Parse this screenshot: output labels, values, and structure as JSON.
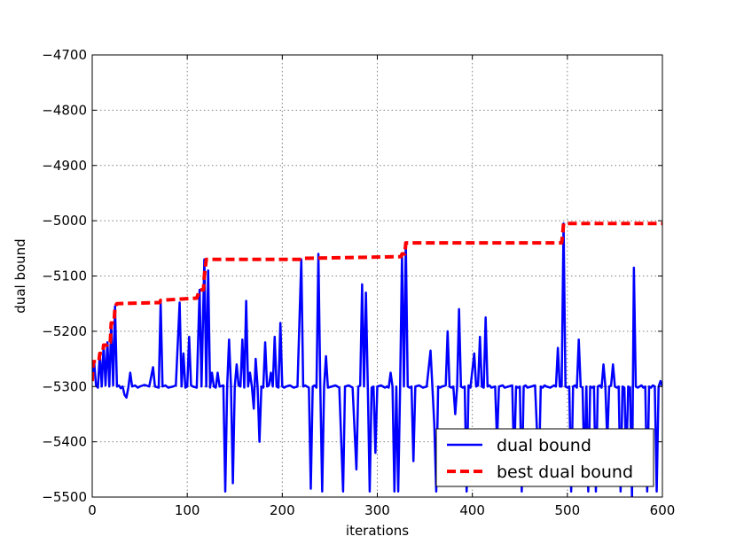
{
  "chart_data": {
    "type": "line",
    "title": "",
    "xlabel": "iterations",
    "ylabel": "dual bound",
    "xlim": [
      0,
      600
    ],
    "ylim": [
      -5500,
      -4700
    ],
    "xticks": [
      0,
      100,
      200,
      300,
      400,
      500,
      600
    ],
    "yticks": [
      -4700,
      -4800,
      -4900,
      -5000,
      -5100,
      -5200,
      -5300,
      -5400,
      -5500
    ],
    "xtick_labels": [
      "0",
      "100",
      "200",
      "300",
      "400",
      "500",
      "600"
    ],
    "ytick_labels": [
      "−4700",
      "−4800",
      "−4900",
      "−5000",
      "−5100",
      "−5200",
      "−5300",
      "−5400",
      "−5500"
    ],
    "grid": true,
    "legend_position": "lower-right",
    "series": [
      {
        "name": "dual bound",
        "color": "#0000ff",
        "style": "solid",
        "points": [
          [
            0,
            -5290
          ],
          [
            2,
            -5255
          ],
          [
            4,
            -5298
          ],
          [
            6,
            -5302
          ],
          [
            8,
            -5240
          ],
          [
            10,
            -5300
          ],
          [
            12,
            -5225
          ],
          [
            14,
            -5298
          ],
          [
            16,
            -5220
          ],
          [
            18,
            -5300
          ],
          [
            20,
            -5185
          ],
          [
            22,
            -5298
          ],
          [
            24,
            -5155
          ],
          [
            26,
            -5300
          ],
          [
            28,
            -5298
          ],
          [
            30,
            -5303
          ],
          [
            32,
            -5300
          ],
          [
            34,
            -5315
          ],
          [
            36,
            -5320
          ],
          [
            38,
            -5302
          ],
          [
            40,
            -5275
          ],
          [
            42,
            -5300
          ],
          [
            45,
            -5298
          ],
          [
            48,
            -5302
          ],
          [
            50,
            -5300
          ],
          [
            55,
            -5297
          ],
          [
            60,
            -5300
          ],
          [
            64,
            -5265
          ],
          [
            66,
            -5300
          ],
          [
            70,
            -5302
          ],
          [
            72,
            -5148
          ],
          [
            74,
            -5300
          ],
          [
            77,
            -5298
          ],
          [
            80,
            -5302
          ],
          [
            85,
            -5300
          ],
          [
            88,
            -5298
          ],
          [
            92,
            -5148
          ],
          [
            94,
            -5300
          ],
          [
            96,
            -5240
          ],
          [
            98,
            -5302
          ],
          [
            100,
            -5300
          ],
          [
            102,
            -5210
          ],
          [
            104,
            -5298
          ],
          [
            106,
            -5300
          ],
          [
            110,
            -5302
          ],
          [
            113,
            -5125
          ],
          [
            115,
            -5300
          ],
          [
            118,
            -5070
          ],
          [
            120,
            -5300
          ],
          [
            122,
            -5090
          ],
          [
            124,
            -5302
          ],
          [
            126,
            -5275
          ],
          [
            128,
            -5300
          ],
          [
            130,
            -5302
          ],
          [
            132,
            -5275
          ],
          [
            134,
            -5300
          ],
          [
            138,
            -5298
          ],
          [
            140,
            -5490
          ],
          [
            142,
            -5300
          ],
          [
            144,
            -5215
          ],
          [
            146,
            -5298
          ],
          [
            148,
            -5475
          ],
          [
            150,
            -5300
          ],
          [
            152,
            -5260
          ],
          [
            154,
            -5298
          ],
          [
            156,
            -5300
          ],
          [
            158,
            -5215
          ],
          [
            160,
            -5302
          ],
          [
            162,
            -5145
          ],
          [
            164,
            -5300
          ],
          [
            166,
            -5275
          ],
          [
            168,
            -5300
          ],
          [
            170,
            -5340
          ],
          [
            172,
            -5250
          ],
          [
            174,
            -5300
          ],
          [
            176,
            -5400
          ],
          [
            178,
            -5300
          ],
          [
            180,
            -5302
          ],
          [
            182,
            -5220
          ],
          [
            184,
            -5300
          ],
          [
            186,
            -5298
          ],
          [
            188,
            -5275
          ],
          [
            190,
            -5300
          ],
          [
            192,
            -5210
          ],
          [
            194,
            -5300
          ],
          [
            196,
            -5302
          ],
          [
            198,
            -5185
          ],
          [
            200,
            -5300
          ],
          [
            202,
            -5302
          ],
          [
            204,
            -5300
          ],
          [
            208,
            -5298
          ],
          [
            212,
            -5302
          ],
          [
            216,
            -5300
          ],
          [
            220,
            -5070
          ],
          [
            222,
            -5300
          ],
          [
            224,
            -5298
          ],
          [
            228,
            -5302
          ],
          [
            230,
            -5485
          ],
          [
            232,
            -5300
          ],
          [
            234,
            -5298
          ],
          [
            236,
            -5302
          ],
          [
            238,
            -5060
          ],
          [
            240,
            -5300
          ],
          [
            242,
            -5490
          ],
          [
            244,
            -5300
          ],
          [
            246,
            -5245
          ],
          [
            248,
            -5302
          ],
          [
            252,
            -5300
          ],
          [
            256,
            -5298
          ],
          [
            260,
            -5302
          ],
          [
            264,
            -5490
          ],
          [
            266,
            -5300
          ],
          [
            270,
            -5298
          ],
          [
            274,
            -5302
          ],
          [
            278,
            -5450
          ],
          [
            280,
            -5300
          ],
          [
            282,
            -5298
          ],
          [
            284,
            -5115
          ],
          [
            286,
            -5300
          ],
          [
            288,
            -5130
          ],
          [
            290,
            -5300
          ],
          [
            292,
            -5490
          ],
          [
            294,
            -5302
          ],
          [
            296,
            -5300
          ],
          [
            298,
            -5420
          ],
          [
            300,
            -5300
          ],
          [
            304,
            -5298
          ],
          [
            306,
            -5300
          ],
          [
            308,
            -5302
          ],
          [
            310,
            -5300
          ],
          [
            312,
            -5302
          ],
          [
            314,
            -5275
          ],
          [
            316,
            -5300
          ],
          [
            318,
            -5490
          ],
          [
            320,
            -5300
          ],
          [
            322,
            -5490
          ],
          [
            324,
            -5302
          ],
          [
            326,
            -5060
          ],
          [
            328,
            -5300
          ],
          [
            330,
            -5040
          ],
          [
            332,
            -5300
          ],
          [
            334,
            -5302
          ],
          [
            336,
            -5300
          ],
          [
            338,
            -5435
          ],
          [
            340,
            -5300
          ],
          [
            344,
            -5298
          ],
          [
            348,
            -5302
          ],
          [
            352,
            -5300
          ],
          [
            356,
            -5235
          ],
          [
            358,
            -5302
          ],
          [
            360,
            -5370
          ],
          [
            362,
            -5490
          ],
          [
            364,
            -5300
          ],
          [
            366,
            -5302
          ],
          [
            368,
            -5300
          ],
          [
            372,
            -5298
          ],
          [
            374,
            -5200
          ],
          [
            376,
            -5300
          ],
          [
            378,
            -5302
          ],
          [
            380,
            -5300
          ],
          [
            382,
            -5350
          ],
          [
            384,
            -5300
          ],
          [
            386,
            -5160
          ],
          [
            388,
            -5300
          ],
          [
            390,
            -5302
          ],
          [
            392,
            -5300
          ],
          [
            394,
            -5490
          ],
          [
            396,
            -5298
          ],
          [
            398,
            -5302
          ],
          [
            402,
            -5240
          ],
          [
            404,
            -5300
          ],
          [
            406,
            -5298
          ],
          [
            408,
            -5210
          ],
          [
            410,
            -5300
          ],
          [
            412,
            -5302
          ],
          [
            414,
            -5175
          ],
          [
            416,
            -5300
          ],
          [
            418,
            -5298
          ],
          [
            420,
            -5302
          ],
          [
            424,
            -5300
          ],
          [
            426,
            -5400
          ],
          [
            428,
            -5300
          ],
          [
            432,
            -5298
          ],
          [
            434,
            -5302
          ],
          [
            438,
            -5300
          ],
          [
            442,
            -5298
          ],
          [
            444,
            -5445
          ],
          [
            446,
            -5300
          ],
          [
            448,
            -5302
          ],
          [
            450,
            -5300
          ],
          [
            452,
            -5490
          ],
          [
            454,
            -5300
          ],
          [
            456,
            -5298
          ],
          [
            458,
            -5302
          ],
          [
            462,
            -5300
          ],
          [
            466,
            -5298
          ],
          [
            470,
            -5460
          ],
          [
            472,
            -5300
          ],
          [
            474,
            -5302
          ],
          [
            476,
            -5298
          ],
          [
            478,
            -5300
          ],
          [
            482,
            -5302
          ],
          [
            484,
            -5300
          ],
          [
            486,
            -5298
          ],
          [
            488,
            -5300
          ],
          [
            490,
            -5230
          ],
          [
            492,
            -5300
          ],
          [
            494,
            -5300
          ],
          [
            496,
            -5005
          ],
          [
            498,
            -5300
          ],
          [
            500,
            -5302
          ],
          [
            502,
            -5300
          ],
          [
            504,
            -5490
          ],
          [
            506,
            -5300
          ],
          [
            508,
            -5298
          ],
          [
            510,
            -5302
          ],
          [
            512,
            -5215
          ],
          [
            514,
            -5300
          ],
          [
            516,
            -5302
          ],
          [
            518,
            -5460
          ],
          [
            520,
            -5300
          ],
          [
            522,
            -5490
          ],
          [
            524,
            -5300
          ],
          [
            526,
            -5302
          ],
          [
            528,
            -5300
          ],
          [
            530,
            -5490
          ],
          [
            532,
            -5300
          ],
          [
            534,
            -5298
          ],
          [
            536,
            -5302
          ],
          [
            538,
            -5260
          ],
          [
            540,
            -5300
          ],
          [
            542,
            -5400
          ],
          [
            544,
            -5300
          ],
          [
            546,
            -5298
          ],
          [
            548,
            -5260
          ],
          [
            550,
            -5300
          ],
          [
            552,
            -5302
          ],
          [
            554,
            -5300
          ],
          [
            556,
            -5490
          ],
          [
            558,
            -5300
          ],
          [
            560,
            -5302
          ],
          [
            562,
            -5440
          ],
          [
            564,
            -5300
          ],
          [
            566,
            -5302
          ],
          [
            568,
            -5500
          ],
          [
            570,
            -5085
          ],
          [
            572,
            -5300
          ],
          [
            574,
            -5302
          ],
          [
            576,
            -5300
          ],
          [
            578,
            -5298
          ],
          [
            580,
            -5302
          ],
          [
            582,
            -5300
          ],
          [
            584,
            -5490
          ],
          [
            586,
            -5300
          ],
          [
            588,
            -5302
          ],
          [
            590,
            -5298
          ],
          [
            592,
            -5300
          ],
          [
            594,
            -5490
          ],
          [
            596,
            -5300
          ],
          [
            598,
            -5290
          ],
          [
            600,
            -5300
          ]
        ]
      },
      {
        "name": "best dual bound",
        "color": "#ff0000",
        "style": "dashed",
        "points": [
          [
            0,
            -5290
          ],
          [
            1,
            -5255
          ],
          [
            7,
            -5255
          ],
          [
            8,
            -5240
          ],
          [
            11,
            -5240
          ],
          [
            12,
            -5225
          ],
          [
            16,
            -5225
          ],
          [
            17,
            -5220
          ],
          [
            19,
            -5220
          ],
          [
            20,
            -5185
          ],
          [
            23,
            -5185
          ],
          [
            24,
            -5155
          ],
          [
            26,
            -5150
          ],
          [
            71,
            -5148
          ],
          [
            72,
            -5144
          ],
          [
            110,
            -5140
          ],
          [
            113,
            -5125
          ],
          [
            117,
            -5125
          ],
          [
            118,
            -5100
          ],
          [
            120,
            -5070
          ],
          [
            220,
            -5070
          ],
          [
            221,
            -5068
          ],
          [
            325,
            -5065
          ],
          [
            326,
            -5060
          ],
          [
            329,
            -5060
          ],
          [
            330,
            -5040
          ],
          [
            494,
            -5040
          ],
          [
            495,
            -5025
          ],
          [
            496,
            -5005
          ],
          [
            600,
            -5005
          ]
        ]
      }
    ]
  }
}
